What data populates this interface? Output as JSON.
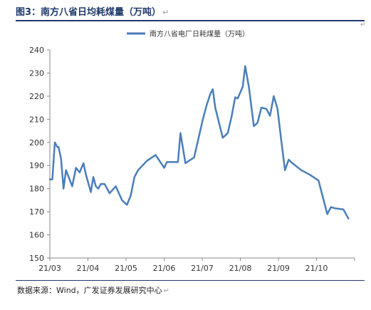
{
  "header": {
    "title": "图3：南方八省日均耗煤量（万吨）",
    "return_mark": "↵"
  },
  "footer": {
    "source": "数据来源：Wind，广发证券发展研究中心",
    "return_mark": "↵"
  },
  "chart_data": {
    "type": "line",
    "title": "",
    "xlabel": "",
    "ylabel": "",
    "legend_position": "top-center",
    "grid": false,
    "ylim": [
      150,
      240
    ],
    "yticks": [
      150,
      160,
      170,
      180,
      190,
      200,
      210,
      220,
      230,
      240
    ],
    "xticks": [
      "21/03",
      "21/04",
      "21/05",
      "21/06",
      "21/07",
      "21/08",
      "21/09",
      "21/10"
    ],
    "xlim": [
      "2021-03-01",
      "2021-11-01"
    ],
    "series": [
      {
        "name": "南方八省电厂日耗煤量（万吨）",
        "color": "#4a7ebb",
        "x": [
          "2021-03-01",
          "2021-03-03",
          "2021-03-05",
          "2021-03-07",
          "2021-03-08",
          "2021-03-10",
          "2021-03-12",
          "2021-03-14",
          "2021-03-19",
          "2021-03-22",
          "2021-03-25",
          "2021-03-28",
          "2021-03-30",
          "2021-04-03",
          "2021-04-05",
          "2021-04-07",
          "2021-04-09",
          "2021-04-11",
          "2021-04-14",
          "2021-04-18",
          "2021-04-23",
          "2021-04-28",
          "2021-05-02",
          "2021-05-05",
          "2021-05-08",
          "2021-05-11",
          "2021-05-18",
          "2021-05-25",
          "2021-06-01",
          "2021-06-03",
          "2021-06-06",
          "2021-06-12",
          "2021-06-14",
          "2021-06-18",
          "2021-06-25",
          "2021-07-02",
          "2021-07-05",
          "2021-07-08",
          "2021-07-10",
          "2021-07-12",
          "2021-07-18",
          "2021-07-22",
          "2021-07-25",
          "2021-07-28",
          "2021-07-30",
          "2021-08-03",
          "2021-08-05",
          "2021-08-08",
          "2021-08-12",
          "2021-08-15",
          "2021-08-18",
          "2021-08-22",
          "2021-08-25",
          "2021-08-28",
          "2021-08-31",
          "2021-09-03",
          "2021-09-06",
          "2021-09-09",
          "2021-09-12",
          "2021-09-19",
          "2021-09-26",
          "2021-10-03",
          "2021-10-10",
          "2021-10-13",
          "2021-10-16",
          "2021-10-23",
          "2021-10-27"
        ],
        "values": [
          184,
          184,
          200,
          198,
          198,
          193,
          180,
          188,
          181,
          189,
          187,
          191,
          186,
          178.5,
          185,
          181,
          180,
          182,
          182,
          178,
          181,
          175,
          173,
          177,
          185,
          188,
          192,
          194.5,
          189,
          191.5,
          191.5,
          191.5,
          204,
          191,
          193.5,
          210,
          216,
          221,
          223,
          215,
          202,
          204,
          211,
          219.5,
          219,
          224,
          233,
          224,
          207,
          208.5,
          215,
          214.5,
          211.5,
          220,
          214.5,
          201,
          188,
          192.5,
          191,
          188,
          186,
          183.5,
          169,
          172,
          171.5,
          171,
          167
        ]
      }
    ]
  }
}
